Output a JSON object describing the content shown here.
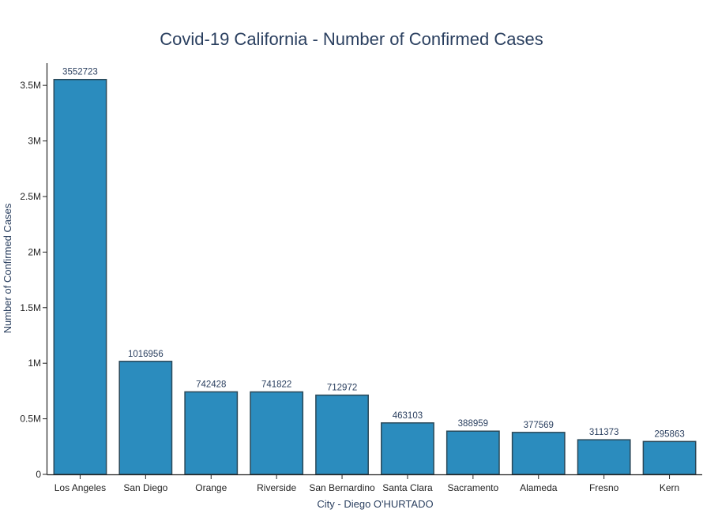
{
  "chart_data": {
    "type": "bar",
    "title": "Covid-19 California - Number of Confirmed Cases",
    "xlabel": "City - Diego O'HURTADO",
    "ylabel": "Number of Confirmed Cases",
    "categories": [
      "Los Angeles",
      "San Diego",
      "Orange",
      "Riverside",
      "San Bernardino",
      "Santa Clara",
      "Sacramento",
      "Alameda",
      "Fresno",
      "Kern"
    ],
    "values": [
      3552723,
      1016956,
      742428,
      741822,
      712972,
      463103,
      388959,
      377569,
      311373,
      295863
    ],
    "ylim": [
      0,
      3700000
    ],
    "yticks": [
      0,
      500000,
      1000000,
      1500000,
      2000000,
      2500000,
      3000000,
      3500000
    ],
    "ytick_labels": [
      "0",
      "0.5M",
      "1M",
      "1.5M",
      "2M",
      "2.5M",
      "3M",
      "3.5M"
    ],
    "bar_color": "#2b8cbe",
    "bar_edge_color": "#2a4858",
    "grid": false,
    "legend": "none"
  }
}
